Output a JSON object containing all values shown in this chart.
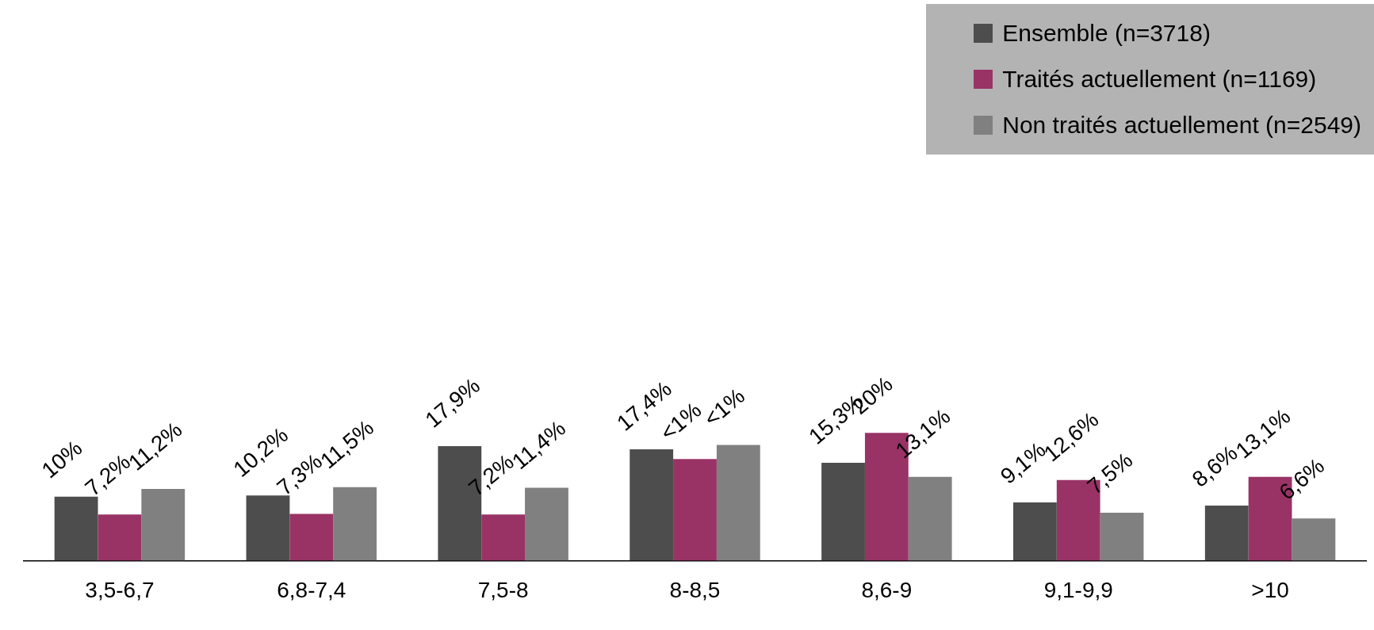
{
  "chart_data": {
    "type": "bar",
    "categories": [
      "3,5-6,7",
      "6,8-7,4",
      "7,5-8",
      "8-8,5",
      "8,6-9",
      "9,1-9,9",
      ">10"
    ],
    "series": [
      {
        "name": "Ensemble (n=3718)",
        "color": "#4d4d4d",
        "values": [
          10,
          10.2,
          17.9,
          17.4,
          15.3,
          9.1,
          8.6
        ],
        "value_labels": [
          "10%",
          "10,2%",
          "17,9%",
          "17,4%",
          "15,3%",
          "9,1%",
          "8,6%"
        ]
      },
      {
        "name": "Traités actuellement (n=1169)",
        "color": "#993366",
        "values": [
          7.2,
          7.3,
          7.2,
          15.9,
          20,
          12.6,
          13.1
        ],
        "value_labels": [
          "7,2%",
          "7,3%",
          "7,2%",
          "<1%",
          "20%",
          "12,6%",
          "13,1%"
        ]
      },
      {
        "name": "Non traités actuellement (n=2549)",
        "color": "#808080",
        "values": [
          11.2,
          11.5,
          11.4,
          18.1,
          13.1,
          7.5,
          6.6
        ],
        "value_labels": [
          "11,2%",
          "11,5%",
          "11,4%",
          "<1%",
          "13,1%",
          "7,5%",
          "6,6%"
        ]
      }
    ],
    "legend": "top right",
    "grid": false
  }
}
